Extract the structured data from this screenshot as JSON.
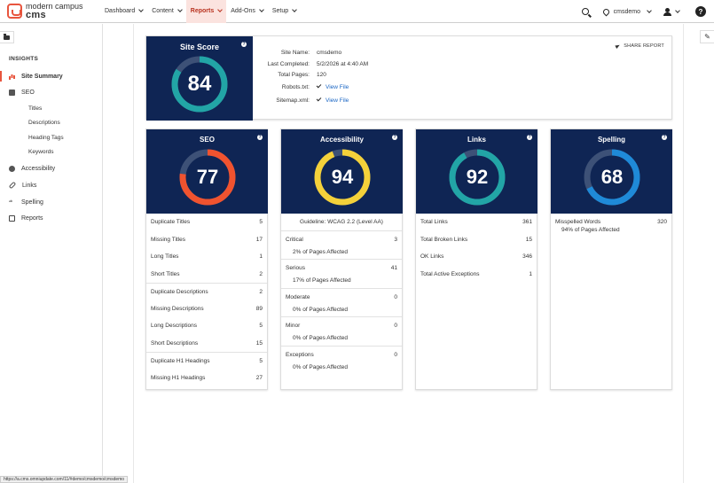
{
  "brand": {
    "line1": "modern campus",
    "line2": "cms"
  },
  "nav": [
    {
      "label": "Dashboard",
      "active": false
    },
    {
      "label": "Content",
      "active": false
    },
    {
      "label": "Reports",
      "active": true
    },
    {
      "label": "Add-Ons",
      "active": false
    },
    {
      "label": "Setup",
      "active": false
    }
  ],
  "topright": {
    "site": "cmsdemo",
    "help": "?"
  },
  "sidebar": {
    "heading": "INSIGHTS",
    "items": [
      {
        "label": "Site Summary",
        "icon": "bar-chart-icon",
        "active": true
      },
      {
        "label": "SEO",
        "icon": "documents-icon",
        "active": false
      },
      {
        "label": "Accessibility",
        "icon": "accessibility-icon",
        "active": false
      },
      {
        "label": "Links",
        "icon": "link-icon",
        "active": false
      },
      {
        "label": "Spelling",
        "icon": "spelling-icon",
        "active": false
      },
      {
        "label": "Reports",
        "icon": "report-icon",
        "active": false
      }
    ],
    "seo_sub": [
      "Titles",
      "Descriptions",
      "Heading Tags",
      "Keywords"
    ]
  },
  "site_score": {
    "title": "Site Score",
    "value": "84",
    "fraction": 0.84,
    "share_label": "SHARE REPORT",
    "info": [
      {
        "label": "Site Name:",
        "value": "cmsdemo"
      },
      {
        "label": "Last Completed:",
        "value": "5/2/2026 at 4:40 AM"
      },
      {
        "label": "Total Pages:",
        "value": "120"
      },
      {
        "label": "Robots.txt:",
        "value": "View File"
      },
      {
        "label": "Sitemap.xml:",
        "value": "View File"
      }
    ]
  },
  "seo": {
    "title": "SEO",
    "value": "77",
    "fraction": 0.77,
    "color": "#f0532f",
    "rows": [
      {
        "label": "Duplicate Titles",
        "value": "5"
      },
      {
        "label": "Missing Titles",
        "value": "17"
      },
      {
        "label": "Long Titles",
        "value": "1"
      },
      {
        "label": "Short Titles",
        "value": "2"
      },
      {
        "label": "Duplicate Descriptions",
        "value": "2"
      },
      {
        "label": "Missing Descriptions",
        "value": "89"
      },
      {
        "label": "Long Descriptions",
        "value": "5"
      },
      {
        "label": "Short Descriptions",
        "value": "15"
      },
      {
        "label": "Duplicate H1 Headings",
        "value": "5"
      },
      {
        "label": "Missing H1 Headings",
        "value": "27"
      }
    ]
  },
  "accessibility": {
    "title": "Accessibility",
    "value": "94",
    "fraction": 0.94,
    "color": "#f4d13a",
    "guideline": "Guideline: WCAG 2.2 (Level AA)",
    "groups": [
      {
        "label": "Critical",
        "value": "3",
        "sub": "2% of Pages Affected"
      },
      {
        "label": "Serious",
        "value": "41",
        "sub": "17% of Pages Affected"
      },
      {
        "label": "Moderate",
        "value": "0",
        "sub": "0% of Pages Affected"
      },
      {
        "label": "Minor",
        "value": "0",
        "sub": "0% of Pages Affected"
      },
      {
        "label": "Exceptions",
        "value": "0",
        "sub": "0% of Pages Affected"
      }
    ]
  },
  "links": {
    "title": "Links",
    "value": "92",
    "fraction": 0.92,
    "color": "#22a5a6",
    "rows": [
      {
        "label": "Total Links",
        "value": "361"
      },
      {
        "label": "Total Broken Links",
        "value": "15"
      },
      {
        "label": "OK Links",
        "value": "346"
      },
      {
        "label": "Total Active Exceptions",
        "value": "1"
      }
    ]
  },
  "spelling": {
    "title": "Spelling",
    "value": "68",
    "fraction": 0.68,
    "color": "#1f8ad8",
    "rows": [
      {
        "label": "Misspelled Words",
        "value": "320"
      }
    ],
    "sub": "94% of Pages Affected"
  },
  "status_url": "https://a.cms.omniupdate.com/11/#demo/cmsdemo/cmsdemo"
}
